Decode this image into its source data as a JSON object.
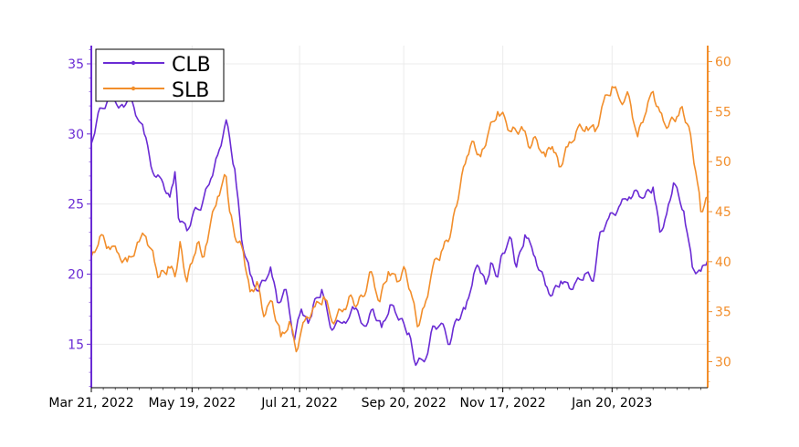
{
  "chart_data": {
    "type": "line",
    "title": "",
    "xlabel": "",
    "ylabel": "",
    "y2label": "",
    "grid": true,
    "legend_position": "top-left",
    "x_ticks": [
      "Mar 21, 2022",
      "May 19, 2022",
      "Jul 21, 2022",
      "Sep 20, 2022",
      "Nov 17, 2022",
      "Jan 20, 2023"
    ],
    "x_tick_dates": [
      "2022-03-21",
      "2022-05-19",
      "2022-07-21",
      "2022-09-20",
      "2022-11-17",
      "2023-01-20"
    ],
    "xlim": [
      "2022-03-21",
      "2023-03-17"
    ],
    "ylim_left": [
      11.9,
      36.3
    ],
    "ylim_right": [
      27.4,
      61.6
    ],
    "yticks_left": [
      "15",
      "20",
      "25",
      "30",
      "35"
    ],
    "yticks_right": [
      "30",
      "35",
      "40",
      "45",
      "50",
      "55",
      "60"
    ],
    "series": [
      {
        "name": "CLB",
        "axis": "left",
        "color": "#6a2bd4",
        "values": [
          [
            "2022-03-21",
            29.3
          ],
          [
            "2022-03-25",
            31.5
          ],
          [
            "2022-03-31",
            32.5
          ],
          [
            "2022-04-08",
            32.1
          ],
          [
            "2022-04-14",
            32.3
          ],
          [
            "2022-04-21",
            30.0
          ],
          [
            "2022-04-27",
            27.0
          ],
          [
            "2022-05-02",
            26.5
          ],
          [
            "2022-05-06",
            25.5
          ],
          [
            "2022-05-09",
            27.3
          ],
          [
            "2022-05-11",
            24.0
          ],
          [
            "2022-05-16",
            23.1
          ],
          [
            "2022-05-20",
            24.5
          ],
          [
            "2022-05-25",
            25.0
          ],
          [
            "2022-05-30",
            26.8
          ],
          [
            "2022-06-03",
            28.5
          ],
          [
            "2022-06-08",
            31.0
          ],
          [
            "2022-06-13",
            27.5
          ],
          [
            "2022-06-17",
            22.5
          ],
          [
            "2022-06-22",
            20.0
          ],
          [
            "2022-06-27",
            18.8
          ],
          [
            "2022-07-04",
            20.5
          ],
          [
            "2022-07-08",
            18.0
          ],
          [
            "2022-07-13",
            18.9
          ],
          [
            "2022-07-18",
            15.3
          ],
          [
            "2022-07-22",
            17.5
          ],
          [
            "2022-07-26",
            16.5
          ],
          [
            "2022-07-29",
            17.8
          ],
          [
            "2022-08-03",
            18.9
          ],
          [
            "2022-08-08",
            16.2
          ],
          [
            "2022-08-15",
            16.5
          ],
          [
            "2022-08-22",
            17.5
          ],
          [
            "2022-08-29",
            16.3
          ],
          [
            "2022-09-02",
            17.5
          ],
          [
            "2022-09-07",
            16.2
          ],
          [
            "2022-09-12",
            17.8
          ],
          [
            "2022-09-16",
            17.0
          ],
          [
            "2022-09-20",
            16.5
          ],
          [
            "2022-09-23",
            15.8
          ],
          [
            "2022-09-27",
            13.5
          ],
          [
            "2022-10-03",
            14.0
          ],
          [
            "2022-10-07",
            16.3
          ],
          [
            "2022-10-12",
            16.5
          ],
          [
            "2022-10-17",
            15.0
          ],
          [
            "2022-10-21",
            16.8
          ],
          [
            "2022-10-26",
            17.5
          ],
          [
            "2022-10-31",
            20.0
          ],
          [
            "2022-11-03",
            20.5
          ],
          [
            "2022-11-07",
            19.3
          ],
          [
            "2022-11-10",
            20.8
          ],
          [
            "2022-11-14",
            19.8
          ],
          [
            "2022-11-17",
            21.5
          ],
          [
            "2022-11-22",
            22.5
          ],
          [
            "2022-11-25",
            20.5
          ],
          [
            "2022-11-30",
            22.8
          ],
          [
            "2022-12-06",
            21.2
          ],
          [
            "2022-12-12",
            19.2
          ],
          [
            "2022-12-16",
            18.5
          ],
          [
            "2022-12-21",
            19.5
          ],
          [
            "2022-12-26",
            19.0
          ],
          [
            "2022-12-30",
            19.5
          ],
          [
            "2023-01-04",
            20.0
          ],
          [
            "2023-01-09",
            19.5
          ],
          [
            "2023-01-13",
            23.0
          ],
          [
            "2023-01-18",
            24.0
          ],
          [
            "2023-01-24",
            24.8
          ],
          [
            "2023-01-30",
            25.5
          ],
          [
            "2023-02-03",
            26.0
          ],
          [
            "2023-02-08",
            25.5
          ],
          [
            "2023-02-13",
            26.2
          ],
          [
            "2023-02-17",
            23.0
          ],
          [
            "2023-02-21",
            24.3
          ],
          [
            "2023-02-25",
            26.5
          ],
          [
            "2023-03-03",
            24.5
          ],
          [
            "2023-03-08",
            20.5
          ],
          [
            "2023-03-13",
            20.2
          ],
          [
            "2023-03-17",
            21.0
          ]
        ]
      },
      {
        "name": "SLB",
        "axis": "right",
        "color": "#f28e2b",
        "values": [
          [
            "2022-03-21",
            40.5
          ],
          [
            "2022-03-26",
            42.5
          ],
          [
            "2022-03-31",
            41.5
          ],
          [
            "2022-04-06",
            40.8
          ],
          [
            "2022-04-11",
            40.0
          ],
          [
            "2022-04-18",
            42.0
          ],
          [
            "2022-04-22",
            42.5
          ],
          [
            "2022-04-27",
            40.0
          ],
          [
            "2022-04-30",
            38.5
          ],
          [
            "2022-05-05",
            39.5
          ],
          [
            "2022-05-09",
            38.5
          ],
          [
            "2022-05-12",
            42.0
          ],
          [
            "2022-05-16",
            38.0
          ],
          [
            "2022-05-20",
            40.5
          ],
          [
            "2022-05-23",
            42.0
          ],
          [
            "2022-05-26",
            40.5
          ],
          [
            "2022-05-29",
            43.0
          ],
          [
            "2022-06-03",
            46.5
          ],
          [
            "2022-06-08",
            48.5
          ],
          [
            "2022-06-10",
            45.0
          ],
          [
            "2022-06-14",
            42.0
          ],
          [
            "2022-06-18",
            41.0
          ],
          [
            "2022-06-22",
            37.0
          ],
          [
            "2022-06-26",
            38.0
          ],
          [
            "2022-06-30",
            34.5
          ],
          [
            "2022-07-05",
            36.0
          ],
          [
            "2022-07-10",
            32.5
          ],
          [
            "2022-07-15",
            34.0
          ],
          [
            "2022-07-19",
            31.0
          ],
          [
            "2022-07-25",
            34.5
          ],
          [
            "2022-07-30",
            35.5
          ],
          [
            "2022-08-04",
            36.5
          ],
          [
            "2022-08-09",
            34.0
          ],
          [
            "2022-08-15",
            35.0
          ],
          [
            "2022-08-19",
            36.5
          ],
          [
            "2022-08-23",
            35.5
          ],
          [
            "2022-08-27",
            36.5
          ],
          [
            "2022-09-01",
            39.0
          ],
          [
            "2022-09-06",
            36.0
          ],
          [
            "2022-09-11",
            39.0
          ],
          [
            "2022-09-16",
            38.0
          ],
          [
            "2022-09-20",
            39.5
          ],
          [
            "2022-09-24",
            37.0
          ],
          [
            "2022-09-28",
            33.5
          ],
          [
            "2022-10-02",
            35.5
          ],
          [
            "2022-10-07",
            39.5
          ],
          [
            "2022-10-12",
            41.0
          ],
          [
            "2022-10-16",
            42.0
          ],
          [
            "2022-10-19",
            44.5
          ],
          [
            "2022-10-23",
            47.5
          ],
          [
            "2022-10-27",
            50.5
          ],
          [
            "2022-10-31",
            52.0
          ],
          [
            "2022-11-04",
            50.5
          ],
          [
            "2022-11-08",
            52.5
          ],
          [
            "2022-11-14",
            55.0
          ],
          [
            "2022-11-18",
            54.5
          ],
          [
            "2022-11-22",
            53.0
          ],
          [
            "2022-11-28",
            53.5
          ],
          [
            "2022-12-02",
            51.5
          ],
          [
            "2022-12-06",
            52.5
          ],
          [
            "2022-12-12",
            50.5
          ],
          [
            "2022-12-16",
            51.5
          ],
          [
            "2022-12-20",
            49.5
          ],
          [
            "2022-12-25",
            51.5
          ],
          [
            "2022-12-30",
            53.0
          ],
          [
            "2023-01-05",
            53.5
          ],
          [
            "2023-01-10",
            53.0
          ],
          [
            "2023-01-15",
            56.0
          ],
          [
            "2023-01-20",
            57.5
          ],
          [
            "2023-01-25",
            56.0
          ],
          [
            "2023-01-30",
            56.5
          ],
          [
            "2023-02-04",
            52.5
          ],
          [
            "2023-02-08",
            54.5
          ],
          [
            "2023-02-13",
            57.0
          ],
          [
            "2023-02-17",
            55.0
          ],
          [
            "2023-02-22",
            53.5
          ],
          [
            "2023-02-27",
            54.5
          ],
          [
            "2023-03-02",
            55.5
          ],
          [
            "2023-03-06",
            53.5
          ],
          [
            "2023-03-10",
            49.0
          ],
          [
            "2023-03-13",
            45.0
          ],
          [
            "2023-03-17",
            46.5
          ]
        ]
      }
    ]
  }
}
